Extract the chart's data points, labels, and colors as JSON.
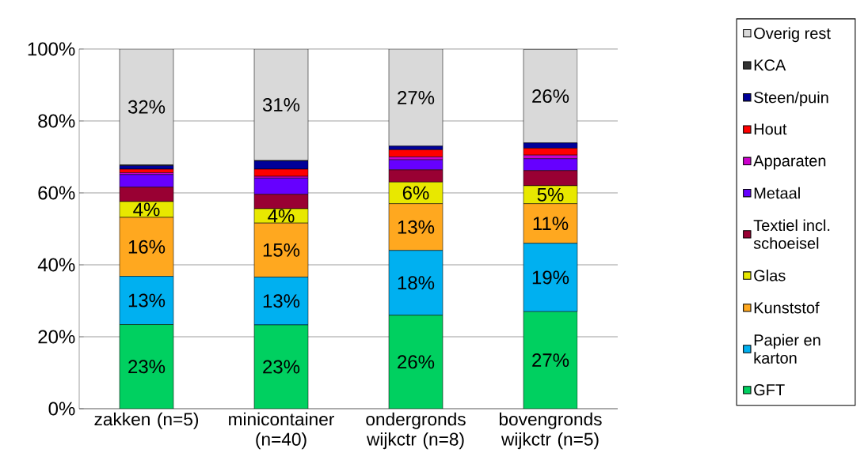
{
  "chart_data": {
    "type": "bar",
    "stacked": true,
    "categories": [
      "zakken (n=5)",
      "minicontainer (n=40)",
      "ondergronds wijkctr (n=8)",
      "bovengronds wijkctr (n=5)"
    ],
    "series": [
      {
        "name": "GFT",
        "color": "#00d060",
        "values": [
          23.4,
          23.3,
          26,
          27
        ],
        "value_labels": [
          "23%",
          "23%",
          "26%",
          "27%"
        ]
      },
      {
        "name": "Papier en karton",
        "color": "#00b0f0",
        "values": [
          13.4,
          13.3,
          18,
          19
        ],
        "value_labels": [
          "13%",
          "13%",
          "18%",
          "19%"
        ]
      },
      {
        "name": "Kunststof",
        "color": "#ffa81f",
        "values": [
          16.4,
          15,
          13,
          11
        ],
        "value_labels": [
          "16%",
          "15%",
          "13%",
          "11%"
        ]
      },
      {
        "name": "Glas",
        "color": "#e8e800",
        "values": [
          4.4,
          4,
          6,
          5
        ],
        "value_labels": [
          "4%",
          "4%",
          "6%",
          "5%"
        ]
      },
      {
        "name": "Textiel incl. schoeisel",
        "color": "#990033",
        "values": [
          4,
          4,
          3.4,
          4.2
        ]
      },
      {
        "name": "Metaal",
        "color": "#6600ff",
        "values": [
          3.5,
          4.5,
          2.8,
          3.3
        ]
      },
      {
        "name": "Apparaten",
        "color": "#cc00cc",
        "values": [
          0.5,
          0.5,
          0.8,
          1
        ]
      },
      {
        "name": "Hout",
        "color": "#ff0000",
        "values": [
          1,
          2,
          2,
          1.9
        ]
      },
      {
        "name": "Steen/puin",
        "color": "#000099",
        "values": [
          1,
          2.3,
          1,
          1.5
        ]
      },
      {
        "name": "KCA",
        "color": "#333333",
        "values": [
          0.2,
          0.1,
          null,
          null
        ]
      },
      {
        "name": "Overig rest",
        "color": "#d9d9d9",
        "values": [
          32.2,
          31,
          27,
          26
        ],
        "value_labels": [
          "32%",
          "31%",
          "27%",
          "26%"
        ]
      }
    ],
    "ylim": [
      0,
      100
    ],
    "yticks": [
      {
        "value": 0,
        "label": "0%"
      },
      {
        "value": 20,
        "label": "20%"
      },
      {
        "value": 40,
        "label": "40%"
      },
      {
        "value": 60,
        "label": "60%"
      },
      {
        "value": 80,
        "label": "80%"
      },
      {
        "value": 100,
        "label": "100%"
      }
    ],
    "grid": "y",
    "legend": "right"
  }
}
